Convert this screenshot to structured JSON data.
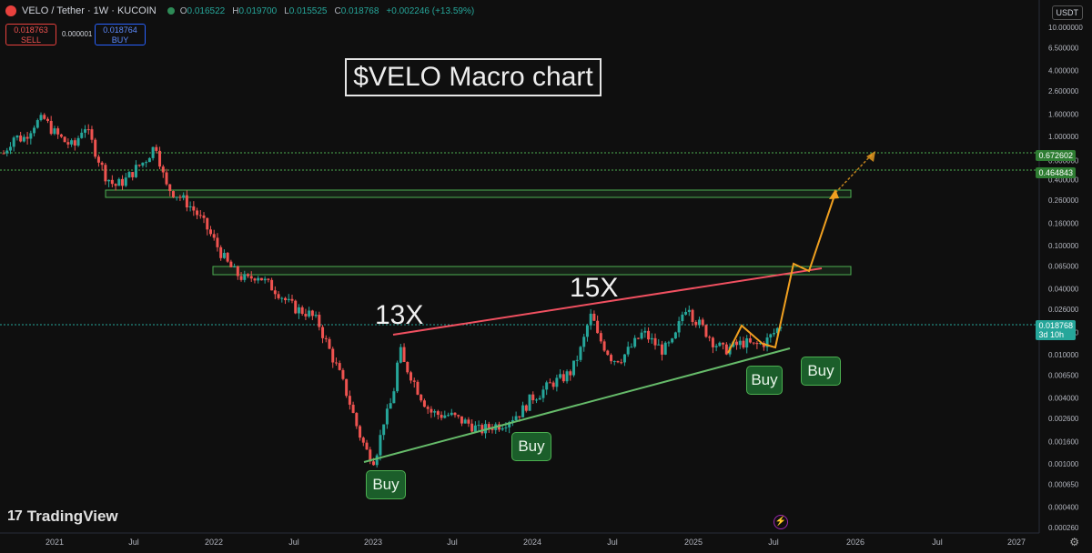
{
  "header": {
    "symbol_title": "VELO / Tether · 1W · KUCOIN",
    "open_label": "O",
    "open": "0.016522",
    "high_label": "H",
    "high": "0.019700",
    "low_label": "L",
    "low": "0.015525",
    "close_label": "C",
    "close": "0.018768",
    "change": "+0.002246 (+13.59%)",
    "currency": "USDT"
  },
  "trade": {
    "sell_price": "0.018763",
    "sell_label": "SELL",
    "spread": "0.000001",
    "buy_price": "0.018764",
    "buy_label": "BUY"
  },
  "annotations": {
    "title": "$VELO Macro chart",
    "label_13x": "13X",
    "label_15x": "15X",
    "buy_labels": [
      "Buy",
      "Buy",
      "Buy",
      "Buy"
    ]
  },
  "price_tags": {
    "level_1": "0.672602",
    "level_2": "0.464843",
    "current_price": "0.018768",
    "countdown": "3d 10h"
  },
  "branding": {
    "logo_text": "TradingView"
  },
  "colors": {
    "up": "#26a69a",
    "down": "#ef5350",
    "resistance_line": "#f05060",
    "support_line": "#66bb6a",
    "projection": "#f0a020",
    "zone": "#4caf50"
  },
  "chart_data": {
    "type": "candlestick",
    "yscale": "log",
    "y_ticks": [
      "10.000000",
      "6.500000",
      "4.000000",
      "2.600000",
      "1.600000",
      "1.000000",
      "0.600000",
      "0.400000",
      "0.260000",
      "0.160000",
      "0.100000",
      "0.065000",
      "0.040000",
      "0.026000",
      "0.016000",
      "0.010000",
      "0.006500",
      "0.004000",
      "0.002600",
      "0.001600",
      "0.001000",
      "0.000650",
      "0.000400",
      "0.000260"
    ],
    "x_ticks": [
      "2021",
      "Jul",
      "2022",
      "Jul",
      "2023",
      "Jul",
      "2024",
      "Jul",
      "2025",
      "Jul",
      "2026",
      "Jul",
      "2027"
    ],
    "series_close": [
      [
        2020.92,
        0.7
      ],
      [
        2021.0,
        1.0
      ],
      [
        2021.08,
        0.95
      ],
      [
        2021.17,
        1.3
      ],
      [
        2021.25,
        1.45
      ],
      [
        2021.33,
        1.1
      ],
      [
        2021.42,
        0.9
      ],
      [
        2021.5,
        0.8
      ],
      [
        2021.58,
        1.3
      ],
      [
        2021.67,
        0.75
      ],
      [
        2021.75,
        0.45
      ],
      [
        2021.83,
        0.35
      ],
      [
        2021.92,
        0.4
      ],
      [
        2022.0,
        0.5
      ],
      [
        2022.08,
        0.6
      ],
      [
        2022.17,
        0.85
      ],
      [
        2022.21,
        0.55
      ],
      [
        2022.25,
        0.35
      ],
      [
        2022.33,
        0.3
      ],
      [
        2022.42,
        0.25
      ],
      [
        2022.5,
        0.2
      ],
      [
        2022.58,
        0.15
      ],
      [
        2022.67,
        0.1
      ],
      [
        2022.75,
        0.07
      ],
      [
        2022.83,
        0.055
      ],
      [
        2022.92,
        0.048
      ],
      [
        2023.0,
        0.055
      ],
      [
        2023.08,
        0.045
      ],
      [
        2023.17,
        0.038
      ],
      [
        2023.25,
        0.03
      ],
      [
        2023.33,
        0.026
      ],
      [
        2023.42,
        0.024
      ],
      [
        2023.5,
        0.02
      ],
      [
        2023.58,
        0.012
      ],
      [
        2023.67,
        0.007
      ],
      [
        2023.75,
        0.004
      ],
      [
        2023.83,
        0.002
      ],
      [
        2023.9,
        0.0013
      ],
      [
        2023.96,
        0.0011
      ],
      [
        2024.0,
        0.0015
      ],
      [
        2024.04,
        0.0025
      ],
      [
        2024.08,
        0.003
      ],
      [
        2024.12,
        0.0045
      ],
      [
        2024.17,
        0.0115
      ],
      [
        2024.21,
        0.008
      ],
      [
        2024.25,
        0.007
      ],
      [
        2024.33,
        0.0045
      ],
      [
        2024.42,
        0.003
      ],
      [
        2024.5,
        0.0028
      ],
      [
        2024.58,
        0.0028
      ],
      [
        2024.67,
        0.0025
      ],
      [
        2024.75,
        0.0023
      ],
      [
        2024.83,
        0.002
      ],
      [
        2024.92,
        0.0022
      ],
      [
        2025.0,
        0.0023
      ],
      [
        2025.08,
        0.0026
      ],
      [
        2025.17,
        0.003
      ],
      [
        2025.25,
        0.004
      ],
      [
        2025.33,
        0.0045
      ],
      [
        2025.42,
        0.0055
      ],
      [
        2025.5,
        0.006
      ],
      [
        2025.58,
        0.007
      ],
      [
        2025.67,
        0.012
      ],
      [
        2025.71,
        0.018
      ],
      [
        2025.75,
        0.024
      ],
      [
        2025.79,
        0.015
      ],
      [
        2025.83,
        0.013
      ],
      [
        2025.92,
        0.009
      ],
      [
        2026.0,
        0.0095
      ],
      [
        2026.08,
        0.012
      ],
      [
        2026.17,
        0.016
      ],
      [
        2026.25,
        0.013
      ],
      [
        2026.33,
        0.011
      ],
      [
        2026.42,
        0.013
      ],
      [
        2026.5,
        0.025
      ],
      [
        2026.54,
        0.03
      ],
      [
        2026.58,
        0.022
      ],
      [
        2026.67,
        0.017
      ],
      [
        2026.75,
        0.013
      ],
      [
        2026.83,
        0.011
      ],
      [
        2026.92,
        0.012
      ],
      [
        2027.0,
        0.013
      ],
      [
        2027.08,
        0.012
      ],
      [
        2027.17,
        0.013
      ],
      [
        2027.25,
        0.016
      ],
      [
        2027.3,
        0.0188
      ]
    ],
    "note_x_units": "relative year index"
  }
}
